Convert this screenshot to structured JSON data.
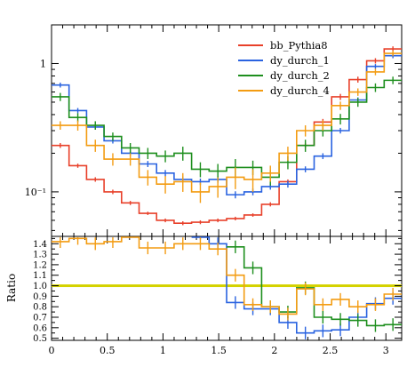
{
  "chart_data": [
    {
      "type": "line",
      "step": true,
      "yscale": "log",
      "ylim": [
        0.045,
        2.0
      ],
      "xlim": [
        0,
        3.14159
      ],
      "xlabel": "",
      "ylabel": "",
      "yticks": [
        {
          "value": 1,
          "label": "1"
        },
        {
          "value": 0.1,
          "label": "10⁻¹"
        }
      ],
      "legend": {
        "position": "top-right"
      },
      "x_edges": [
        0,
        0.15708,
        0.31416,
        0.47124,
        0.62832,
        0.7854,
        0.94248,
        1.09956,
        1.25664,
        1.41372,
        1.5708,
        1.72788,
        1.88496,
        2.04204,
        2.19912,
        2.3562,
        2.51327,
        2.67035,
        2.82743,
        2.98451,
        3.14159
      ],
      "series": [
        {
          "name": "bb_Pythia8",
          "color": "#e8402a",
          "values": [
            0.23,
            0.16,
            0.125,
            0.1,
            0.082,
            0.068,
            0.06,
            0.057,
            0.058,
            0.06,
            0.062,
            0.066,
            0.08,
            0.12,
            0.23,
            0.35,
            0.55,
            0.75,
            1.05,
            1.3
          ],
          "errors": [
            0.01,
            0.006,
            0.005,
            0.004,
            0.003,
            0.002,
            0.002,
            0.002,
            0.002,
            0.002,
            0.002,
            0.002,
            0.003,
            0.005,
            0.01,
            0.02,
            0.03,
            0.04,
            0.05,
            0.06
          ]
        },
        {
          "name": "dy_durch_1",
          "color": "#2a63e0",
          "values": [
            0.68,
            0.43,
            0.32,
            0.25,
            0.2,
            0.165,
            0.14,
            0.125,
            0.12,
            0.125,
            0.095,
            0.1,
            0.11,
            0.115,
            0.15,
            0.19,
            0.3,
            0.52,
            0.95,
            1.15
          ],
          "errors": [
            0.03,
            0.02,
            0.015,
            0.012,
            0.01,
            0.009,
            0.008,
            0.007,
            0.007,
            0.007,
            0.006,
            0.006,
            0.006,
            0.007,
            0.008,
            0.01,
            0.015,
            0.025,
            0.04,
            0.05
          ]
        },
        {
          "name": "dy_durch_2",
          "color": "#1e8f1e",
          "values": [
            0.55,
            0.38,
            0.33,
            0.27,
            0.22,
            0.2,
            0.19,
            0.2,
            0.15,
            0.145,
            0.155,
            0.155,
            0.13,
            0.17,
            0.23,
            0.3,
            0.37,
            0.5,
            0.65,
            0.74
          ],
          "errors": [
            0.04,
            0.03,
            0.025,
            0.02,
            0.02,
            0.02,
            0.02,
            0.025,
            0.02,
            0.02,
            0.025,
            0.02,
            0.018,
            0.02,
            0.025,
            0.03,
            0.035,
            0.04,
            0.05,
            0.05
          ]
        },
        {
          "name": "dy_durch_4",
          "color": "#f39c12",
          "values": [
            0.33,
            0.33,
            0.23,
            0.18,
            0.18,
            0.13,
            0.115,
            0.12,
            0.1,
            0.11,
            0.13,
            0.125,
            0.14,
            0.2,
            0.3,
            0.33,
            0.47,
            0.6,
            0.86,
            1.2
          ],
          "errors": [
            0.025,
            0.03,
            0.025,
            0.02,
            0.02,
            0.018,
            0.018,
            0.02,
            0.018,
            0.02,
            0.025,
            0.025,
            0.02,
            0.025,
            0.03,
            0.03,
            0.035,
            0.04,
            0.05,
            0.06
          ]
        }
      ]
    },
    {
      "type": "line",
      "step": true,
      "ylabel": "Ratio",
      "ylim": [
        0.48,
        1.47
      ],
      "xlim": [
        0,
        3.14159
      ],
      "yticks": [
        "0.5",
        "0.6",
        "0.7",
        "0.8",
        "0.9",
        "1.0",
        "1.1",
        "1.2",
        "1.3",
        "1.4"
      ],
      "xticks": [
        "0",
        "0.5",
        "1",
        "1.5",
        "2",
        "2.5",
        "3"
      ],
      "reference": {
        "value": 1.0,
        "color": "#d4d200"
      },
      "series": [
        {
          "name": "dy_durch_1",
          "color": "#2a63e0",
          "values": [
            null,
            null,
            null,
            null,
            null,
            null,
            null,
            null,
            1.5,
            1.4,
            0.84,
            0.78,
            0.78,
            0.65,
            0.55,
            0.57,
            0.58,
            0.7,
            0.83,
            0.88
          ]
        },
        {
          "name": "dy_durch_2",
          "color": "#1e8f1e",
          "values": [
            null,
            null,
            null,
            null,
            null,
            null,
            null,
            null,
            null,
            null,
            1.37,
            1.17,
            0.8,
            0.75,
            0.98,
            0.7,
            0.68,
            0.67,
            0.62,
            0.63
          ]
        },
        {
          "name": "dy_durch_4",
          "color": "#f39c12",
          "values": [
            1.42,
            1.45,
            1.4,
            1.42,
            1.52,
            1.36,
            1.36,
            1.4,
            1.4,
            1.35,
            1.1,
            0.82,
            0.8,
            0.73,
            0.97,
            0.82,
            0.87,
            0.8,
            0.82,
            0.92
          ]
        }
      ]
    }
  ]
}
